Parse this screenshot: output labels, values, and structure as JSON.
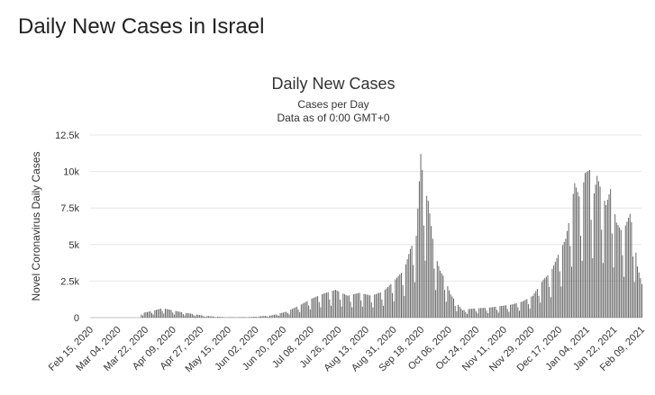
{
  "page": {
    "heading": "Daily New Cases in Israel"
  },
  "chart_data": {
    "type": "bar",
    "title": "Daily New Cases",
    "subtitle_lines": [
      "Cases per Day",
      "Data as of 0:00 GMT+0"
    ],
    "ylabel": "Novel Coronavirus Daily Cases",
    "xlabel": "",
    "ylim": [
      0,
      12500
    ],
    "y_ticks": [
      {
        "value": 0,
        "label": "0"
      },
      {
        "value": 2500,
        "label": "2.5k"
      },
      {
        "value": 5000,
        "label": "5k"
      },
      {
        "value": 7500,
        "label": "7.5k"
      },
      {
        "value": 10000,
        "label": "10k"
      },
      {
        "value": 12500,
        "label": "12.5k"
      }
    ],
    "x_range": [
      "2020-02-15",
      "2021-02-18"
    ],
    "x_ticks": [
      "Feb 15, 2020",
      "Mar 04, 2020",
      "Mar 22, 2020",
      "Apr 09, 2020",
      "Apr 27, 2020",
      "May 15, 2020",
      "Jun 02, 2020",
      "Jun 20, 2020",
      "Jul 08, 2020",
      "Jul 26, 2020",
      "Aug 13, 2020",
      "Aug 31, 2020",
      "Sep 18, 2020",
      "Oct 06, 2020",
      "Oct 24, 2020",
      "Nov 11, 2020",
      "Nov 29, 2020",
      "Dec 17, 2020",
      "Jan 04, 2021",
      "Jan 22, 2021",
      "Feb 09, 2021"
    ],
    "grid": "horizontal",
    "legend": "none",
    "bar_color": "#666666",
    "series": [
      {
        "x": [
          "2020-03-20",
          "2020-03-27",
          "2020-04-03",
          "2020-04-10",
          "2020-04-17",
          "2020-04-24",
          "2020-05-01",
          "2020-05-15",
          "2020-06-01",
          "2020-06-15",
          "2020-06-25",
          "2020-07-05",
          "2020-07-12",
          "2020-07-20",
          "2020-07-28",
          "2020-08-05",
          "2020-08-13",
          "2020-08-21",
          "2020-08-29",
          "2020-09-05",
          "2020-09-12",
          "2020-09-16",
          "2020-09-20",
          "2020-09-23",
          "2020-09-25",
          "2020-09-28",
          "2020-10-01",
          "2020-10-03",
          "2020-10-06",
          "2020-10-09",
          "2020-10-13",
          "2020-10-17",
          "2020-10-21",
          "2020-10-26",
          "2020-11-02",
          "2020-11-09",
          "2020-11-16",
          "2020-11-23",
          "2020-11-30",
          "2020-12-07",
          "2020-12-14",
          "2020-12-19",
          "2020-12-24",
          "2020-12-29",
          "2021-01-01",
          "2021-01-04",
          "2021-01-08",
          "2021-01-11",
          "2021-01-14",
          "2021-01-17",
          "2021-01-19",
          "2021-01-22",
          "2021-01-25",
          "2021-01-28",
          "2021-02-01",
          "2021-02-04",
          "2021-02-07",
          "2021-02-10",
          "2021-02-13",
          "2021-02-15",
          "2021-02-18"
        ],
        "y": [
          300,
          450,
          650,
          500,
          350,
          250,
          120,
          30,
          40,
          150,
          400,
          900,
          1300,
          1650,
          1900,
          1500,
          1700,
          1500,
          1800,
          2500,
          3300,
          4700,
          5600,
          11200,
          9000,
          8000,
          5400,
          4200,
          3200,
          2700,
          1600,
          1000,
          500,
          600,
          650,
          700,
          800,
          900,
          1100,
          1500,
          2600,
          3100,
          4300,
          5400,
          7000,
          9200,
          8000,
          9900,
          10100,
          8500,
          9700,
          8600,
          7700,
          8800,
          6500,
          6000,
          6300,
          7100,
          5400,
          3500,
          2300
        ]
      }
    ]
  }
}
